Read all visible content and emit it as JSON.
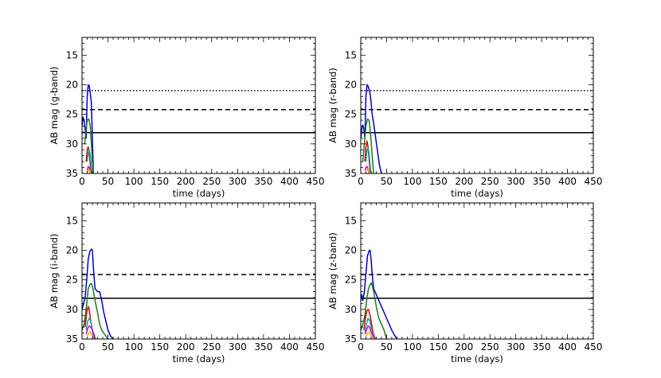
{
  "chart_data": [
    {
      "type": "line",
      "panel": "top-left",
      "xlabel": "time (days)",
      "ylabel": "AB mag (g-band)",
      "xlim": [
        0,
        450
      ],
      "ylim": [
        35,
        12
      ],
      "y_inverted": true,
      "xticks": [
        0,
        50,
        100,
        150,
        200,
        250,
        300,
        350,
        400,
        450
      ],
      "yticks": [
        15,
        20,
        25,
        30,
        35
      ],
      "grid": false,
      "legend": "none",
      "reference_lines": [
        {
          "style": "dotted",
          "y": 21
        },
        {
          "style": "dashed",
          "y": 24.2
        },
        {
          "style": "solid",
          "y": 28.1
        }
      ],
      "series": [
        {
          "color": "#0000cc",
          "x": [
            0,
            2,
            4,
            6,
            8,
            10,
            12,
            14,
            16,
            18,
            20,
            22
          ],
          "y": [
            27,
            25.5,
            26,
            27.5,
            29,
            22,
            20,
            20.2,
            21.5,
            23,
            29,
            35
          ]
        },
        {
          "color": "#1a7a1a",
          "x": [
            5,
            8,
            10,
            13,
            16,
            18,
            20,
            22
          ],
          "y": [
            30,
            27.5,
            26,
            25.8,
            27,
            30,
            33,
            35
          ]
        },
        {
          "color": "#dd0000",
          "x": [
            8,
            10,
            12,
            14,
            16,
            18
          ],
          "y": [
            33,
            31,
            30.5,
            31.5,
            33.5,
            35
          ]
        },
        {
          "color": "#00aaaa",
          "x": [
            10,
            12,
            14,
            16,
            18,
            20
          ],
          "y": [
            33,
            31.5,
            31,
            32,
            34,
            35
          ]
        },
        {
          "color": "#cc00cc",
          "x": [
            10,
            12,
            14,
            16
          ],
          "y": [
            34.5,
            33.8,
            34,
            35
          ]
        },
        {
          "color": "#ffaa00",
          "x": [
            11,
            13,
            15,
            17
          ],
          "y": [
            34.8,
            34.3,
            34.5,
            35
          ]
        }
      ]
    },
    {
      "type": "line",
      "panel": "top-right",
      "xlabel": "time (days)",
      "ylabel": "AB mag (r-band)",
      "xlim": [
        0,
        450
      ],
      "ylim": [
        35,
        12
      ],
      "y_inverted": true,
      "xticks": [
        0,
        50,
        100,
        150,
        200,
        250,
        300,
        350,
        400,
        450
      ],
      "yticks": [
        15,
        20,
        25,
        30,
        35
      ],
      "grid": false,
      "legend": "none",
      "reference_lines": [
        {
          "style": "dotted",
          "y": 21
        },
        {
          "style": "dashed",
          "y": 24.2
        },
        {
          "style": "solid",
          "y": 28.1
        }
      ],
      "series": [
        {
          "color": "#0000cc",
          "x": [
            0,
            2,
            4,
            6,
            8,
            10,
            12,
            14,
            16,
            18,
            20,
            22,
            25,
            28,
            32,
            36,
            40
          ],
          "y": [
            29,
            27.5,
            26.8,
            27.5,
            29,
            22,
            20,
            20.2,
            20.8,
            21.5,
            23,
            25,
            26.5,
            28.5,
            31,
            33.5,
            35
          ]
        },
        {
          "color": "#1a7a1a",
          "x": [
            4,
            7,
            10,
            13,
            16,
            18,
            20,
            22,
            25
          ],
          "y": [
            33,
            30,
            27,
            25.8,
            26,
            27.5,
            29.5,
            32,
            35
          ]
        },
        {
          "color": "#dd0000",
          "x": [
            8,
            10,
            12,
            14,
            16,
            18,
            20
          ],
          "y": [
            33,
            30.5,
            29.5,
            30.5,
            32.5,
            34.5,
            35
          ]
        },
        {
          "color": "#00aaaa",
          "x": [
            10,
            12,
            14,
            16,
            18,
            20
          ],
          "y": [
            33,
            31,
            30.8,
            31.5,
            33.5,
            35
          ]
        },
        {
          "color": "#cc00cc",
          "x": [
            8,
            10,
            12,
            14,
            16
          ],
          "y": [
            34.5,
            34,
            33.8,
            34.2,
            35
          ]
        },
        {
          "color": "#ffaa00",
          "x": [
            11,
            13,
            15,
            17
          ],
          "y": [
            34.6,
            34.2,
            34.4,
            35
          ]
        }
      ]
    },
    {
      "type": "line",
      "panel": "bottom-left",
      "xlabel": "time (days)",
      "ylabel": "AB mag (i-band)",
      "xlim": [
        0,
        450
      ],
      "ylim": [
        35,
        12
      ],
      "y_inverted": true,
      "xticks": [
        0,
        50,
        100,
        150,
        200,
        250,
        300,
        350,
        400,
        450
      ],
      "yticks": [
        15,
        20,
        25,
        30,
        35
      ],
      "grid": false,
      "legend": "none",
      "reference_lines": [
        {
          "style": "dashed",
          "y": 24.1
        },
        {
          "style": "solid",
          "y": 28.1
        }
      ],
      "series": [
        {
          "color": "#0000cc",
          "x": [
            0,
            3,
            6,
            9,
            12,
            15,
            18,
            20,
            22,
            25,
            30,
            34,
            38,
            42,
            46,
            50,
            55,
            60
          ],
          "y": [
            30,
            29,
            28,
            25,
            21.5,
            20.2,
            19.8,
            20,
            23,
            26.5,
            27,
            27,
            28.5,
            30.5,
            32,
            33.5,
            34.5,
            35
          ]
        },
        {
          "color": "#1a7a1a",
          "x": [
            0,
            4,
            8,
            12,
            15,
            18,
            21,
            25,
            30,
            34,
            38,
            42,
            46,
            50
          ],
          "y": [
            33.5,
            32.5,
            30,
            26.5,
            25.8,
            25.6,
            26.5,
            28.5,
            30.5,
            32.5,
            33.5,
            34,
            34.5,
            35
          ]
        },
        {
          "color": "#dd0000",
          "x": [
            6,
            9,
            12,
            14,
            16,
            18,
            20,
            22,
            24
          ],
          "y": [
            33,
            30.5,
            29.5,
            30,
            31.5,
            32.5,
            33.5,
            34.5,
            35
          ]
        },
        {
          "color": "#00aaaa",
          "x": [
            8,
            11,
            14,
            16,
            18,
            20,
            22,
            26
          ],
          "y": [
            33.5,
            32,
            31.5,
            31.8,
            32.5,
            33.5,
            34.5,
            35
          ]
        },
        {
          "color": "#cc00cc",
          "x": [
            8,
            11,
            14,
            17,
            20,
            23,
            26
          ],
          "y": [
            34.2,
            33.2,
            32.8,
            33,
            33.5,
            34.2,
            35
          ]
        },
        {
          "color": "#ffaa00",
          "x": [
            10,
            13,
            16,
            19,
            22
          ],
          "y": [
            34.5,
            34,
            33.8,
            34.3,
            35
          ]
        }
      ]
    },
    {
      "type": "line",
      "panel": "bottom-right",
      "xlabel": "time (days)",
      "ylabel": "AB mag (z-band)",
      "xlim": [
        0,
        450
      ],
      "ylim": [
        35,
        12
      ],
      "y_inverted": true,
      "xticks": [
        0,
        50,
        100,
        150,
        200,
        250,
        300,
        350,
        400,
        450
      ],
      "yticks": [
        15,
        20,
        25,
        30,
        35
      ],
      "grid": false,
      "legend": "none",
      "reference_lines": [
        {
          "style": "dashed",
          "y": 24.1
        },
        {
          "style": "solid",
          "y": 28.1
        }
      ],
      "series": [
        {
          "color": "#0000cc",
          "x": [
            0,
            2,
            4,
            7,
            10,
            13,
            16,
            18,
            20,
            22,
            25,
            30,
            35,
            40,
            45,
            50,
            55,
            60,
            65,
            70
          ],
          "y": [
            28.5,
            27.5,
            28.5,
            27,
            24,
            21,
            20.1,
            20,
            21.5,
            24,
            26.5,
            27.5,
            28.5,
            29.5,
            30.5,
            31.5,
            32.5,
            33.5,
            34.3,
            35
          ]
        },
        {
          "color": "#1a7a1a",
          "x": [
            0,
            4,
            8,
            12,
            15,
            18,
            21,
            25,
            30,
            35,
            40,
            45,
            50
          ],
          "y": [
            33.5,
            32.5,
            31,
            28,
            26.5,
            25.8,
            25.5,
            27,
            29.5,
            31.5,
            32.5,
            33.5,
            35
          ]
        },
        {
          "color": "#dd0000",
          "x": [
            6,
            9,
            12,
            15,
            18,
            21,
            24,
            28
          ],
          "y": [
            33.5,
            31.5,
            30.2,
            30,
            31,
            32.5,
            34,
            35
          ]
        },
        {
          "color": "#00aaaa",
          "x": [
            8,
            11,
            14,
            17,
            20,
            24,
            28
          ],
          "y": [
            33.8,
            32.5,
            31.5,
            31.8,
            33,
            34.3,
            35
          ]
        },
        {
          "color": "#cc00cc",
          "x": [
            8,
            11,
            14,
            17,
            20,
            24,
            28
          ],
          "y": [
            34.2,
            33.5,
            32.8,
            33,
            33.8,
            34.5,
            35
          ]
        },
        {
          "color": "#ffaa00",
          "x": [
            10,
            13,
            16,
            19,
            22,
            25
          ],
          "y": [
            34.6,
            34,
            33.8,
            34.2,
            34.7,
            35
          ]
        }
      ]
    }
  ]
}
